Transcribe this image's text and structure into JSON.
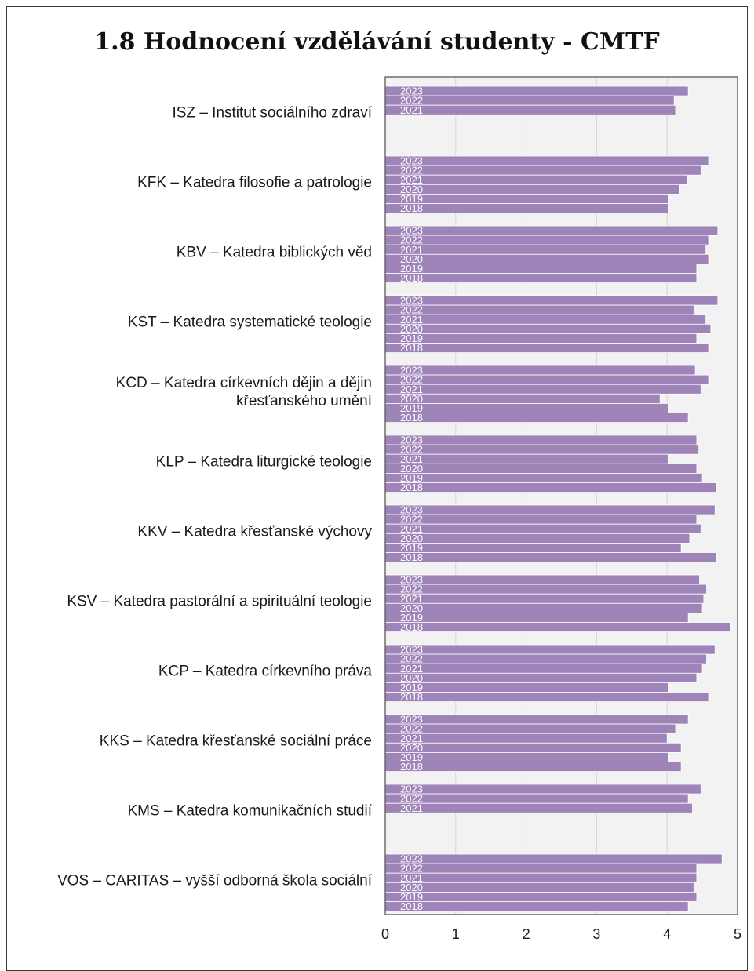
{
  "title": "1.8 Hodnocení vzdělávání studenty - CMTF",
  "colors": {
    "bar": "#9e84b8",
    "bar_stroke": "#ffffff",
    "plot_bg": "#f2f2f2",
    "grid": "#d6d6d6",
    "axis": "#595959"
  },
  "chart_data": {
    "type": "bar",
    "orientation": "horizontal",
    "title": "1.8 Hodnocení vzdělávání studenty - CMTF",
    "xlim": [
      0,
      5
    ],
    "x_ticks": [
      "0",
      "1",
      "2",
      "3",
      "4",
      "5"
    ],
    "grid": true,
    "groups": [
      {
        "label": "ISZ – Institut sociálního zdraví",
        "bars": [
          {
            "year": "2023",
            "value": 4.3
          },
          {
            "year": "2022",
            "value": 4.1
          },
          {
            "year": "2021",
            "value": 4.12
          }
        ]
      },
      {
        "label": "KFK – Katedra filosofie a patrologie",
        "bars": [
          {
            "year": "2023",
            "value": 4.6
          },
          {
            "year": "2022",
            "value": 4.48
          },
          {
            "year": "2021",
            "value": 4.28
          },
          {
            "year": "2020",
            "value": 4.18
          },
          {
            "year": "2019",
            "value": 4.02
          },
          {
            "year": "2018",
            "value": 4.02
          }
        ]
      },
      {
        "label": "KBV – Katedra biblických věd",
        "bars": [
          {
            "year": "2023",
            "value": 4.72
          },
          {
            "year": "2022",
            "value": 4.6
          },
          {
            "year": "2021",
            "value": 4.55
          },
          {
            "year": "2020",
            "value": 4.6
          },
          {
            "year": "2019",
            "value": 4.42
          },
          {
            "year": "2018",
            "value": 4.42
          }
        ]
      },
      {
        "label": "KST – Katedra systematické teologie",
        "bars": [
          {
            "year": "2023",
            "value": 4.72
          },
          {
            "year": "2022",
            "value": 4.38
          },
          {
            "year": "2021",
            "value": 4.55
          },
          {
            "year": "2020",
            "value": 4.62
          },
          {
            "year": "2019",
            "value": 4.42
          },
          {
            "year": "2018",
            "value": 4.6
          }
        ]
      },
      {
        "label": "KCD – Katedra církevních dějin a dějin křesťanského umění",
        "label_lines": [
          "KCD – Katedra církevních dějin a dějin",
          "křesťanského umění"
        ],
        "bars": [
          {
            "year": "2023",
            "value": 4.4
          },
          {
            "year": "2022",
            "value": 4.6
          },
          {
            "year": "2021",
            "value": 4.48
          },
          {
            "year": "2020",
            "value": 3.9
          },
          {
            "year": "2019",
            "value": 4.02
          },
          {
            "year": "2018",
            "value": 4.3
          }
        ]
      },
      {
        "label": "KLP – Katedra liturgické teologie",
        "bars": [
          {
            "year": "2023",
            "value": 4.42
          },
          {
            "year": "2022",
            "value": 4.45
          },
          {
            "year": "2021",
            "value": 4.02
          },
          {
            "year": "2020",
            "value": 4.42
          },
          {
            "year": "2019",
            "value": 4.5
          },
          {
            "year": "2018",
            "value": 4.7
          }
        ]
      },
      {
        "label": "KKV – Katedra křesťanské výchovy",
        "bars": [
          {
            "year": "2023",
            "value": 4.68
          },
          {
            "year": "2022",
            "value": 4.42
          },
          {
            "year": "2021",
            "value": 4.48
          },
          {
            "year": "2020",
            "value": 4.32
          },
          {
            "year": "2019",
            "value": 4.2
          },
          {
            "year": "2018",
            "value": 4.7
          }
        ]
      },
      {
        "label": "KSV – Katedra pastorální a spirituální teologie",
        "bars": [
          {
            "year": "2023",
            "value": 4.46
          },
          {
            "year": "2022",
            "value": 4.56
          },
          {
            "year": "2021",
            "value": 4.52
          },
          {
            "year": "2020",
            "value": 4.5
          },
          {
            "year": "2019",
            "value": 4.3
          },
          {
            "year": "2018",
            "value": 4.9
          }
        ]
      },
      {
        "label": "KCP – Katedra církevního práva",
        "bars": [
          {
            "year": "2023",
            "value": 4.68
          },
          {
            "year": "2022",
            "value": 4.56
          },
          {
            "year": "2021",
            "value": 4.5
          },
          {
            "year": "2020",
            "value": 4.42
          },
          {
            "year": "2019",
            "value": 4.02
          },
          {
            "year": "2018",
            "value": 4.6
          }
        ]
      },
      {
        "label": "KKS – Katedra křesťanské sociální práce",
        "bars": [
          {
            "year": "2023",
            "value": 4.3
          },
          {
            "year": "2022",
            "value": 4.12
          },
          {
            "year": "2021",
            "value": 4.0
          },
          {
            "year": "2020",
            "value": 4.2
          },
          {
            "year": "2019",
            "value": 4.02
          },
          {
            "year": "2018",
            "value": 4.2
          }
        ]
      },
      {
        "label": "KMS – Katedra komunikačních studií",
        "bars": [
          {
            "year": "2023",
            "value": 4.48
          },
          {
            "year": "2022",
            "value": 4.3
          },
          {
            "year": "2021",
            "value": 4.36
          }
        ]
      },
      {
        "label": "VOS – CARITAS – vyšší odborná škola sociální",
        "bars": [
          {
            "year": "2023",
            "value": 4.78
          },
          {
            "year": "2022",
            "value": 4.42
          },
          {
            "year": "2021",
            "value": 4.42
          },
          {
            "year": "2020",
            "value": 4.38
          },
          {
            "year": "2019",
            "value": 4.42
          },
          {
            "year": "2018",
            "value": 4.3
          }
        ]
      }
    ]
  }
}
